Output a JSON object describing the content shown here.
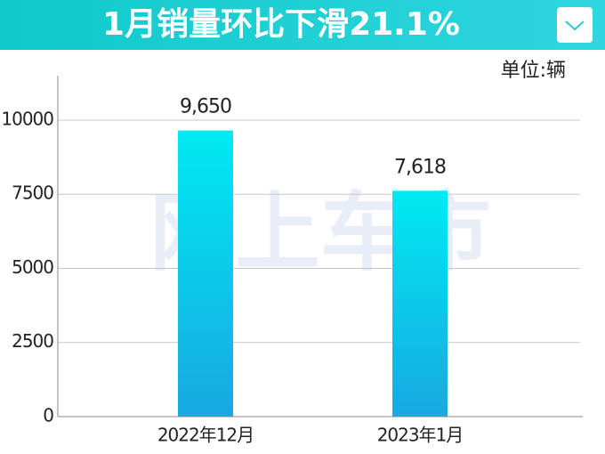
{
  "chart_data": {
    "type": "bar",
    "title": "1月销量环比下滑21.1%",
    "unit": "单位:辆",
    "watermark": "网上车市",
    "categories": [
      "2022年12月",
      "2023年1月"
    ],
    "values": [
      9650,
      7618
    ],
    "value_labels": [
      "9,650",
      "7,618"
    ],
    "color": [
      "#00eaf2",
      "#17a9e0"
    ],
    "ylim": [
      0,
      11500
    ],
    "yticks": [
      0,
      2500,
      5000,
      7500,
      10000
    ],
    "grid": true
  }
}
